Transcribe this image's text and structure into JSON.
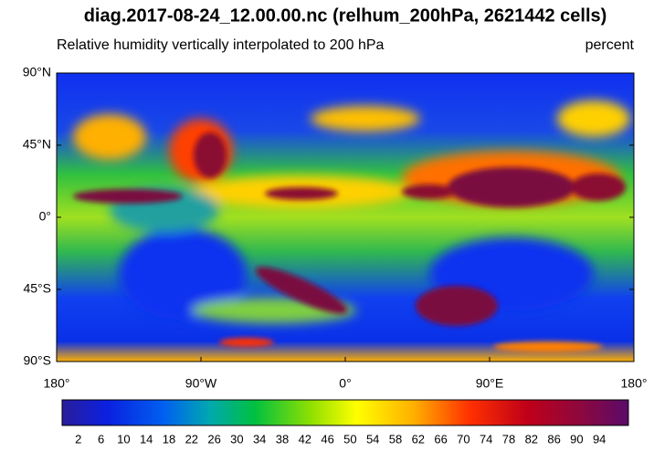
{
  "header": {
    "title": "diag.2017-08-24_12.00.00.nc (relhum_200hPa, 2621442 cells)",
    "subtitle": "Relative humidity vertically interpolated to 200 hPa",
    "units": "percent"
  },
  "map": {
    "lat_labels": [
      "90°N",
      "45°N",
      "0°",
      "45°S",
      "90°S"
    ],
    "lon_labels": [
      "180°",
      "90°W",
      "0°",
      "90°E",
      "180°"
    ]
  },
  "colorbar": {
    "labels": [
      2,
      6,
      10,
      14,
      18,
      22,
      26,
      30,
      34,
      38,
      42,
      46,
      50,
      54,
      58,
      62,
      66,
      70,
      74,
      78,
      82,
      86,
      90,
      94
    ]
  }
}
